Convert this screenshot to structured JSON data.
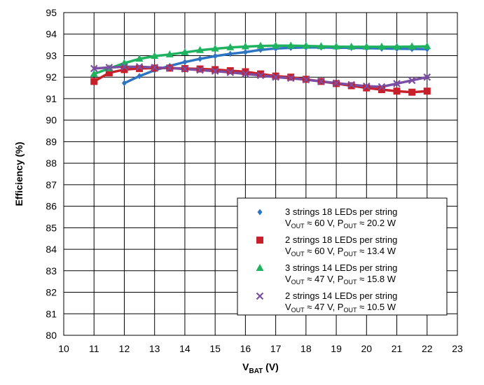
{
  "chart_data": {
    "type": "line",
    "title": "",
    "xlabel": {
      "main": "V",
      "sub": "BAT",
      "suffix": " (V)"
    },
    "ylabel": "Efficiency (%)",
    "xlim": [
      10,
      23
    ],
    "ylim": [
      80,
      95
    ],
    "xticks": [
      "10",
      "11",
      "12",
      "13",
      "14",
      "15",
      "16",
      "17",
      "18",
      "19",
      "20",
      "21",
      "22",
      "23"
    ],
    "yticks": [
      "80",
      "81",
      "82",
      "83",
      "84",
      "85",
      "86",
      "87",
      "88",
      "89",
      "90",
      "91",
      "92",
      "93",
      "94",
      "95"
    ],
    "grid": true,
    "legend_position": "bottom-right",
    "series": [
      {
        "name": "3 strings 18 LEDs per string",
        "line2": {
          "a": "V",
          "as": "OUT",
          "b": " ≈ 60 V, P",
          "bs": "OUT",
          "c": " ≈ 20.2 W"
        },
        "color": "#2d74c2",
        "marker": "diamond",
        "x": [
          12,
          12.5,
          13,
          13.5,
          14,
          14.5,
          15,
          15.5,
          16,
          16.5,
          17,
          17.5,
          18,
          18.5,
          19,
          19.5,
          20,
          20.5,
          21,
          21.5,
          22
        ],
        "y": [
          91.72,
          92.05,
          92.32,
          92.52,
          92.7,
          92.85,
          92.98,
          93.08,
          93.16,
          93.27,
          93.33,
          93.36,
          93.38,
          93.38,
          93.37,
          93.36,
          93.35,
          93.33,
          93.32,
          93.31,
          93.3
        ]
      },
      {
        "name": "2 strings 18 LEDs per string",
        "line2": {
          "a": "V",
          "as": "OUT",
          "b": " ≈ 60 V, P",
          "bs": "OUT",
          "c": " ≈ 13.4 W"
        },
        "color": "#c8202a",
        "marker": "square",
        "x": [
          11,
          11.5,
          12,
          12.5,
          13,
          13.5,
          14,
          14.5,
          15,
          15.5,
          16,
          16.5,
          17,
          17.5,
          18,
          18.5,
          19,
          19.5,
          20,
          20.5,
          21,
          21.5,
          22
        ],
        "y": [
          91.8,
          92.2,
          92.35,
          92.4,
          92.42,
          92.42,
          92.4,
          92.38,
          92.35,
          92.3,
          92.25,
          92.15,
          92.05,
          92.0,
          91.9,
          91.8,
          91.7,
          91.6,
          91.5,
          91.42,
          91.35,
          91.3,
          91.35
        ]
      },
      {
        "name": "3 strings 14 LEDs per string",
        "line2": {
          "a": "V",
          "as": "OUT",
          "b": " ≈ 47 V, P",
          "bs": "OUT",
          "c": " ≈ 15.8 W"
        },
        "color": "#1fb360",
        "marker": "triangle",
        "x": [
          11,
          11.5,
          12,
          12.5,
          13,
          13.5,
          14,
          14.5,
          15,
          15.5,
          16,
          16.5,
          17,
          17.5,
          18,
          18.5,
          19,
          19.5,
          20,
          20.5,
          21,
          21.5,
          22
        ],
        "y": [
          92.15,
          92.4,
          92.65,
          92.85,
          92.98,
          93.05,
          93.15,
          93.25,
          93.32,
          93.38,
          93.42,
          93.45,
          93.46,
          93.46,
          93.45,
          93.43,
          93.42,
          93.41,
          93.41,
          93.41,
          93.41,
          93.42,
          93.43
        ]
      },
      {
        "name": "2 strings 14 LEDs per string",
        "line2": {
          "a": "V",
          "as": "OUT",
          "b": " ≈ 47 V, P",
          "bs": "OUT",
          "c": " ≈ 10.5 W"
        },
        "color": "#7a4ea3",
        "marker": "x",
        "x": [
          11,
          11.5,
          12,
          12.5,
          13,
          13.5,
          14,
          14.5,
          15,
          15.5,
          16,
          16.5,
          17,
          17.5,
          18,
          18.5,
          19,
          19.5,
          20,
          20.5,
          21,
          21.5,
          22
        ],
        "y": [
          92.4,
          92.45,
          92.48,
          92.48,
          92.45,
          92.42,
          92.38,
          92.33,
          92.28,
          92.22,
          92.15,
          92.08,
          92.0,
          91.95,
          91.88,
          91.8,
          91.72,
          91.65,
          91.58,
          91.55,
          91.7,
          91.85,
          92.0
        ]
      }
    ]
  }
}
